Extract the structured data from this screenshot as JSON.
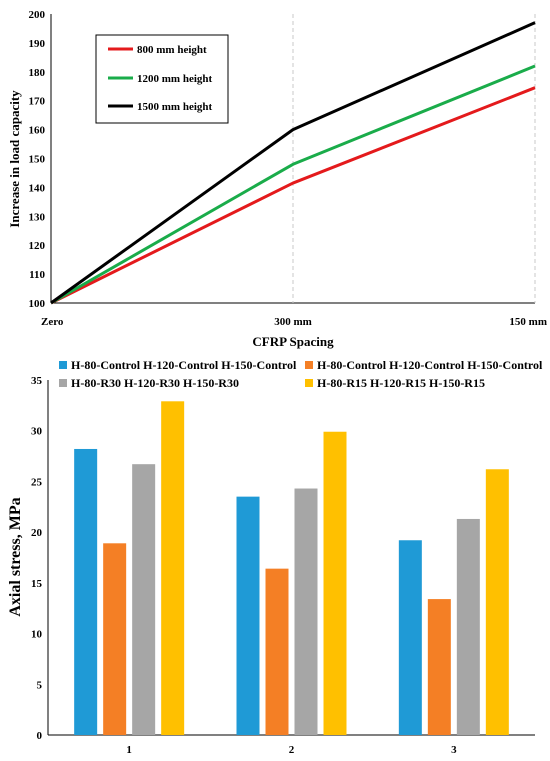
{
  "chart_data": [
    {
      "type": "line",
      "xlabel": "CFRP Spacing",
      "ylabel": "Increase in load capacity",
      "categories": [
        "Zero",
        "300 mm",
        "150 mm"
      ],
      "ylim": [
        100,
        200
      ],
      "yticks": [
        100,
        110,
        120,
        130,
        140,
        150,
        160,
        170,
        180,
        190,
        200
      ],
      "grid": "vertical dashed",
      "legend_position": "top-left",
      "series": [
        {
          "name": "800 mm height",
          "color": "#e41a1c",
          "values": [
            100,
            141.5,
            174.5
          ]
        },
        {
          "name": "1200 mm height",
          "color": "#1aac4a",
          "values": [
            100,
            148,
            182
          ]
        },
        {
          "name": "1500 mm height",
          "color": "#000000",
          "values": [
            100,
            160,
            197
          ]
        }
      ]
    },
    {
      "type": "bar",
      "xlabel": "",
      "ylabel": "Axial stress, MPa",
      "categories": [
        "1",
        "2",
        "3"
      ],
      "ylim": [
        0,
        35
      ],
      "yticks": [
        0,
        5,
        10,
        15,
        20,
        25,
        30,
        35
      ],
      "grid": "none",
      "legend_position": "top",
      "series": [
        {
          "name": "H-80-Control H-120-Control H-150-Control",
          "color": "#1f9ad6",
          "values": [
            28.2,
            23.5,
            19.2
          ]
        },
        {
          "name": "H-80-Control H-120-Control H-150-Control",
          "color": "#f47f25",
          "values": [
            18.9,
            16.4,
            13.4
          ]
        },
        {
          "name": "H-80-R30 H-120-R30 H-150-R30",
          "color": "#a6a6a6",
          "values": [
            26.7,
            24.3,
            21.3
          ]
        },
        {
          "name": "H-80-R15 H-120-R15 H-150-R15",
          "color": "#ffc000",
          "values": [
            32.9,
            29.9,
            26.2
          ]
        }
      ]
    }
  ]
}
